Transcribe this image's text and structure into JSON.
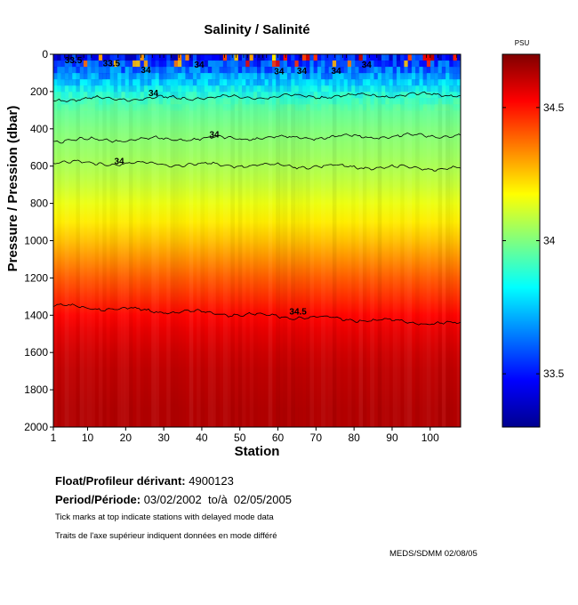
{
  "chart_data": {
    "type": "heatmap",
    "title": "Salinity / Salinité",
    "xlabel": "Station",
    "ylabel": "Pressure / Pression (dbar)",
    "x_ticks": [
      1,
      10,
      20,
      30,
      40,
      50,
      60,
      70,
      80,
      90,
      100
    ],
    "x_tick_labels": [
      "1",
      "10",
      "20",
      "30",
      "40",
      "50",
      "60",
      "70",
      "80",
      "90",
      "100"
    ],
    "xlim": [
      1,
      108
    ],
    "y_ticks": [
      0,
      200,
      400,
      600,
      800,
      1000,
      1200,
      1400,
      1600,
      1800,
      2000
    ],
    "y_tick_labels": [
      "0",
      "200",
      "400",
      "600",
      "800",
      "1000",
      "1200",
      "1400",
      "1600",
      "1800",
      "2000"
    ],
    "ylim": [
      0,
      2000
    ],
    "y_reversed": true,
    "colorbar": {
      "unit": "PSU",
      "range": [
        33.3,
        34.7
      ],
      "ticks": [
        33.5,
        34,
        34.5
      ],
      "tick_labels": [
        "33.5",
        "34",
        "34.5"
      ],
      "colormap": "jet"
    },
    "vertical_profile": {
      "pressure": [
        0,
        50,
        100,
        150,
        200,
        300,
        400,
        500,
        600,
        700,
        800,
        900,
        1000,
        1100,
        1200,
        1300,
        1400,
        1500,
        1600,
        1700,
        1800,
        1900,
        2000
      ],
      "salinity": [
        33.55,
        33.65,
        33.72,
        33.8,
        33.88,
        33.96,
        34.0,
        34.03,
        34.06,
        34.1,
        34.15,
        34.2,
        34.26,
        34.33,
        34.4,
        34.46,
        34.52,
        34.56,
        34.59,
        34.61,
        34.62,
        34.63,
        34.63
      ]
    },
    "contours": [
      {
        "level": 34,
        "label": "34",
        "mean_pressure": 230
      },
      {
        "level": 34,
        "label": "34",
        "mean_pressure": 450
      },
      {
        "level": 34,
        "label": "34",
        "mean_pressure": 595
      },
      {
        "level": 34.5,
        "label": "34.5",
        "mean_pressure": 1400
      }
    ],
    "near_surface_labels": [
      "33.5",
      "33.5",
      "34",
      "34",
      "34",
      "34",
      "34",
      "34"
    ]
  },
  "info": {
    "float_label": "Float/Profileur dérivant:",
    "float_value": "4900123",
    "period_label": "Period/Période:",
    "period_value": "03/02/2002  to/à  02/05/2005",
    "note1": "Tick marks at top indicate stations with delayed mode data",
    "note2": "Traits de l'axe supérieur indiquent données en mode différé",
    "credit": "MEDS/SDMM  02/08/05"
  }
}
